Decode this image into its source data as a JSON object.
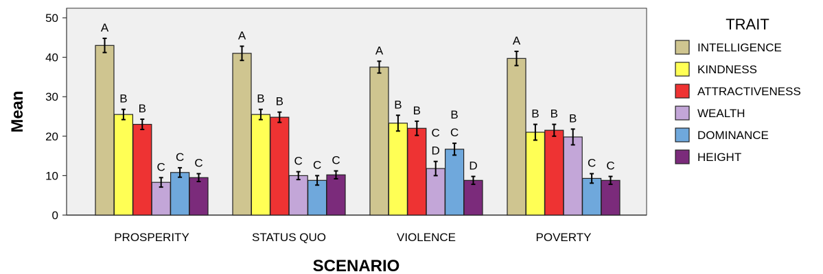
{
  "chart_data": {
    "type": "bar",
    "xlabel": "SCENARIO",
    "ylabel": "Mean",
    "ylim": [
      0,
      50
    ],
    "yticks": [
      0,
      10,
      20,
      30,
      40,
      50
    ],
    "grid": false,
    "legend_title": "TRAIT",
    "legend_position": "right",
    "categories": [
      "PROSPERITY",
      "STATUS QUO",
      "VIOLENCE",
      "POVERTY"
    ],
    "series": [
      {
        "name": "INTELLIGENCE",
        "color": "#cfc590",
        "values": [
          43.0,
          41.0,
          37.5,
          39.7
        ],
        "errors": [
          1.8,
          1.8,
          1.5,
          1.8
        ],
        "letters": [
          "A",
          "A",
          "A",
          "A"
        ]
      },
      {
        "name": "KINDNESS",
        "color": "#ffff55",
        "values": [
          25.5,
          25.5,
          23.3,
          21.0
        ],
        "errors": [
          1.3,
          1.3,
          2.0,
          2.0
        ],
        "letters": [
          "B",
          "B",
          "B",
          "B"
        ]
      },
      {
        "name": "ATTRACTIVENESS",
        "color": "#ee3333",
        "values": [
          23.0,
          24.8,
          22.0,
          21.5
        ],
        "errors": [
          1.3,
          1.3,
          1.8,
          1.5
        ],
        "letters": [
          "B",
          "B",
          "B",
          "B"
        ]
      },
      {
        "name": "WEALTH",
        "color": "#c3a6d8",
        "values": [
          8.3,
          10.0,
          11.8,
          19.8
        ],
        "errors": [
          1.2,
          1.0,
          1.8,
          2.0
        ],
        "letters": [
          "C",
          "C",
          "C\nD",
          "B"
        ]
      },
      {
        "name": "DOMINANCE",
        "color": "#6fa8dc",
        "values": [
          10.8,
          8.8,
          16.7,
          9.3
        ],
        "errors": [
          1.2,
          1.2,
          1.5,
          1.2
        ],
        "letters": [
          "C",
          "C",
          "B\nC",
          "C"
        ]
      },
      {
        "name": "HEIGHT",
        "color": "#7b2b7b",
        "values": [
          9.5,
          10.2,
          8.8,
          8.8
        ],
        "errors": [
          1.0,
          1.0,
          1.0,
          1.0
        ],
        "letters": [
          "C",
          "C",
          "D",
          "C"
        ]
      }
    ]
  }
}
